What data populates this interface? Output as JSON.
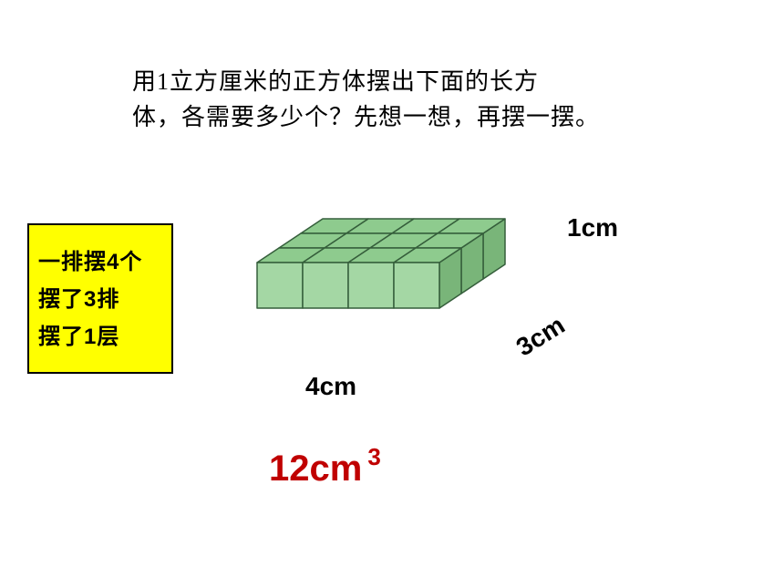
{
  "question": {
    "line1": "用1立方厘米的正方体摆出下面的长方",
    "line2": "体，各需要多少个？先想一想，再摆一摆。"
  },
  "info_box": {
    "bg_color": "#ffff00",
    "border_color": "#000000",
    "lines": [
      "一排摆4个",
      "摆了3排",
      "摆了1层"
    ]
  },
  "cuboid": {
    "cols": 4,
    "rows": 3,
    "layers": 1,
    "cell_size": 50,
    "depth_dx": 24,
    "depth_dy": -16,
    "face_fill": "#a4d7a4",
    "face_stroke": "#355e3b",
    "top_fill": "#8ecb8e",
    "side_fill": "#79b579"
  },
  "labels": {
    "height": "1cm",
    "depth": "3cm",
    "width": "4cm"
  },
  "answer": {
    "value": "12cm",
    "exponent": "3",
    "color": "#c00000"
  }
}
